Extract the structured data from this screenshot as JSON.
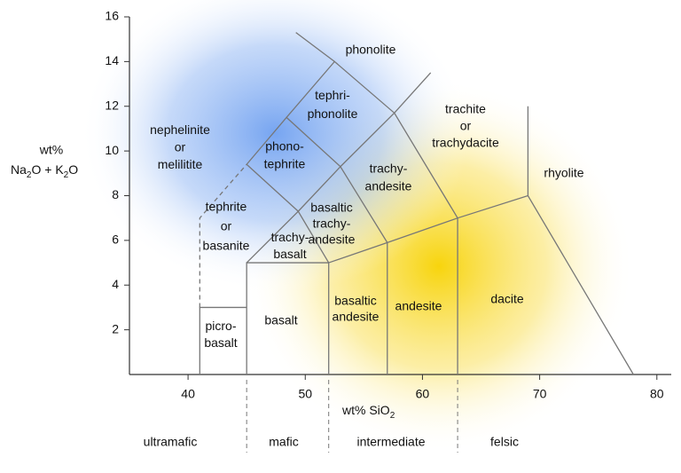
{
  "chart_data": {
    "type": "tas",
    "xlabel": [
      "wt% SiO",
      "2"
    ],
    "ylabel": [
      "wt%",
      "Na",
      "2",
      "O + K",
      "2",
      "O"
    ],
    "xlim": [
      35,
      81
    ],
    "xticks": [
      40,
      50,
      60,
      70,
      80
    ],
    "ylim": [
      0,
      16
    ],
    "yticks": [
      2,
      4,
      6,
      8,
      10,
      12,
      14,
      16
    ],
    "line_color": "#777777",
    "regions": [
      [
        "phonolite"
      ],
      [
        "tephri-",
        "phonolite"
      ],
      [
        "trachite",
        "or",
        "trachydacite"
      ],
      [
        "nephelinite",
        "or",
        "melilitite"
      ],
      [
        "phono-",
        "tephrite"
      ],
      [
        "trachy-",
        "andesite"
      ],
      [
        "rhyolite"
      ],
      [
        "tephrite",
        "or",
        "basanite"
      ],
      [
        "basaltic",
        "trachy-",
        "andesite"
      ],
      [
        "trachy-",
        "basalt"
      ],
      [
        "dacite"
      ],
      [
        "andesite"
      ],
      [
        "basaltic",
        "andesite"
      ],
      [
        "basalt"
      ],
      [
        "picro-",
        "basalt"
      ]
    ],
    "boundaries": [
      {
        "x": [
          41,
          41,
          45
        ],
        "y": [
          0,
          3,
          3
        ],
        "dashed": false
      },
      {
        "x": [
          45,
          45,
          52,
          52
        ],
        "y": [
          0,
          5,
          5,
          0
        ],
        "dashed": false
      },
      {
        "x": [
          52,
          57,
          63,
          69,
          78
        ],
        "y": [
          5,
          5.9,
          7,
          8,
          0
        ],
        "dashed": false
      },
      {
        "x": [
          57,
          57
        ],
        "y": [
          0,
          5.9
        ],
        "dashed": false
      },
      {
        "x": [
          63,
          63
        ],
        "y": [
          0,
          7
        ],
        "dashed": false
      },
      {
        "x": [
          69,
          69
        ],
        "y": [
          8,
          12
        ],
        "dashed": false
      },
      {
        "x": [
          45,
          49.4,
          52
        ],
        "y": [
          5,
          7.3,
          5
        ],
        "dashed": false
      },
      {
        "x": [
          49.4,
          53,
          57
        ],
        "y": [
          7.3,
          9.3,
          5.9
        ],
        "dashed": false
      },
      {
        "x": [
          53,
          57.6,
          63
        ],
        "y": [
          9.3,
          11.7,
          7
        ],
        "dashed": false
      },
      {
        "x": [
          45,
          48.4,
          53
        ],
        "y": [
          9.4,
          11.5,
          9.3
        ],
        "dashed": false
      },
      {
        "x": [
          48.4,
          52.5,
          57.6
        ],
        "y": [
          11.5,
          14,
          11.7
        ],
        "dashed": false
      },
      {
        "x": [
          49.2,
          52.5
        ],
        "y": [
          15.3,
          14
        ],
        "dashed": false
      },
      {
        "x": [
          57.6,
          60.7
        ],
        "y": [
          11.7,
          13.5
        ],
        "dashed": false
      },
      {
        "x": [
          49.4,
          45
        ],
        "y": [
          7.3,
          9.4
        ],
        "dashed": false
      },
      {
        "x": [
          41,
          41,
          45
        ],
        "y": [
          3,
          7,
          9.4
        ],
        "dashed": true
      }
    ],
    "dividers": [
      45,
      52,
      63
    ],
    "classes": [
      "ultramafic",
      "mafic",
      "intermediate",
      "felsic"
    ]
  }
}
